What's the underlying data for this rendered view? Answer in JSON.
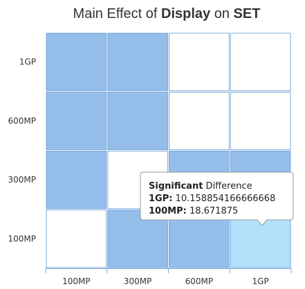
{
  "chart_data": {
    "type": "heatmap",
    "title_parts": [
      {
        "text": "Main Effect of ",
        "bold": false
      },
      {
        "text": "Display",
        "bold": true
      },
      {
        "text": " on ",
        "bold": false
      },
      {
        "text": "SET",
        "bold": true
      }
    ],
    "x_categories": [
      "100MP",
      "300MP",
      "600MP",
      "1GP"
    ],
    "y_categories": [
      "100MP",
      "300MP",
      "600MP",
      "1GP"
    ],
    "significant": [
      [
        false,
        true,
        true,
        true
      ],
      [
        true,
        false,
        true,
        true
      ],
      [
        true,
        true,
        false,
        false
      ],
      [
        true,
        true,
        false,
        false
      ]
    ],
    "highlighted_cell": {
      "x": "1GP",
      "y": "100MP"
    },
    "colors": {
      "significant": "#94bde9",
      "not_significant": "#ffffff",
      "highlight": "#b3e0fa",
      "border": "#78a8dc"
    },
    "grid": true,
    "tooltip": {
      "heading_bold": "Significant",
      "heading_rest": " Difference",
      "rows": [
        {
          "label": "1GP:",
          "value": "10.158854166666668"
        },
        {
          "label": "100MP:",
          "value": "18.671875"
        }
      ]
    }
  }
}
